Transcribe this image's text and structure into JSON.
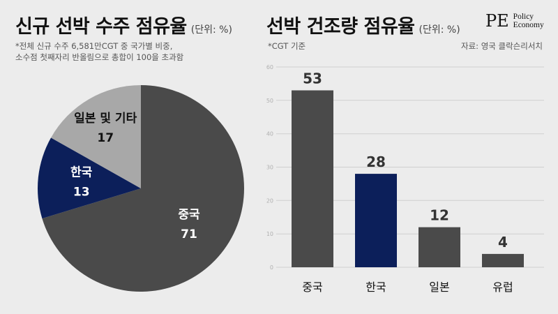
{
  "left": {
    "title": "신규 선박 수주 점유율",
    "unit": "(단위: %)",
    "note_lines": [
      "*전체 신규 수주 6,581만CGT 중 국가별 비중,",
      "소수점 첫째자리 반올림으로 총합이 100을 초과함"
    ]
  },
  "right": {
    "title": "선박 건조량 점유율",
    "unit": "(단위: %)",
    "note": "*CGT 기준",
    "source": "자료: 영국 클락슨리서치"
  },
  "logo": {
    "mark": "PE",
    "line1": "Policy",
    "line2": "Economy"
  },
  "colors": {
    "china": "#4a4a4a",
    "korea": "#0c1f5a",
    "other": "#a8a8a8",
    "japan": "#4a4a4a",
    "europe": "#4a4a4a",
    "grid": "#cfcfcf"
  },
  "chart_data": [
    {
      "type": "pie",
      "title": "신규 선박 수주 점유율",
      "slices": [
        {
          "label": "중국",
          "value": 71,
          "color": "#4a4a4a",
          "text_color": "#ffffff"
        },
        {
          "label": "한국",
          "value": 13,
          "color": "#0c1f5a",
          "text_color": "#ffffff"
        },
        {
          "label": "일본 및 기타",
          "value": 17,
          "color": "#a8a8a8",
          "text_color": "#111111"
        }
      ]
    },
    {
      "type": "bar",
      "title": "선박 건조량 점유율",
      "categories": [
        "중국",
        "한국",
        "일본",
        "유럽"
      ],
      "values": [
        53,
        28,
        12,
        4
      ],
      "colors": [
        "#4a4a4a",
        "#0c1f5a",
        "#4a4a4a",
        "#4a4a4a"
      ],
      "ylim": [
        0,
        60
      ],
      "yticks": [
        "0",
        "10",
        "20",
        "30",
        "40",
        "50",
        "60"
      ],
      "grid": true
    }
  ]
}
